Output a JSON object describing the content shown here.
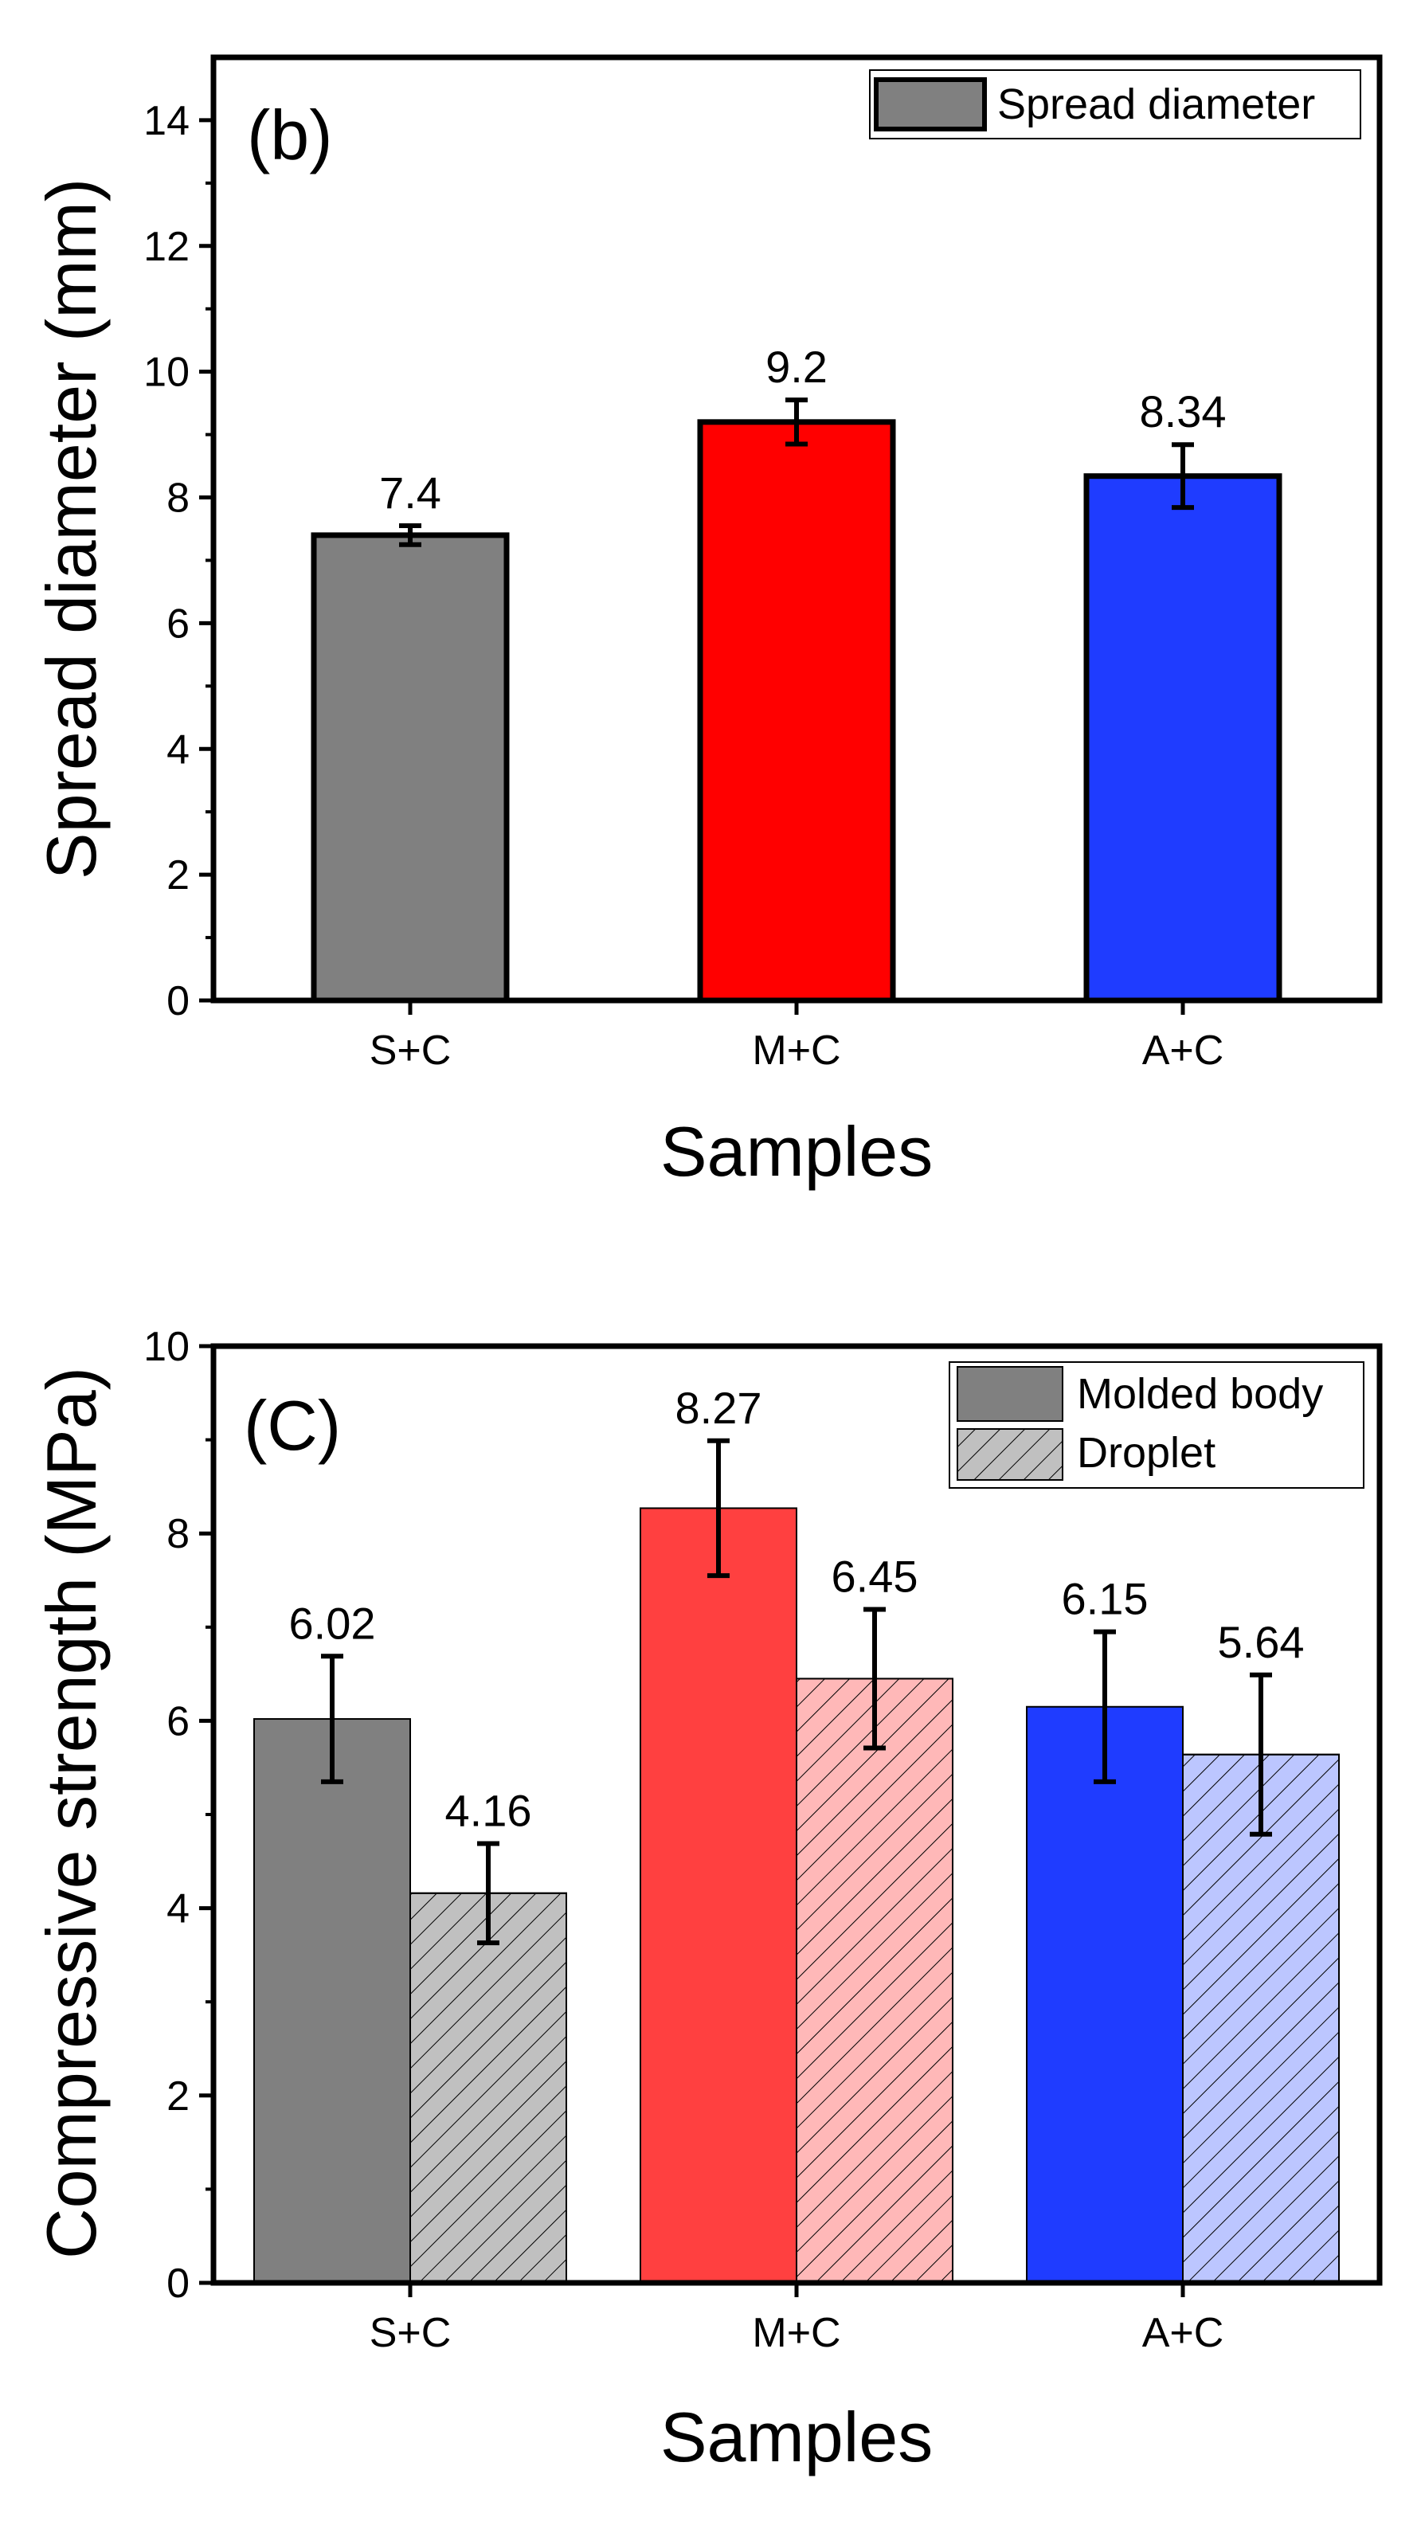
{
  "chart_data": [
    {
      "type": "bar",
      "panel_label": "(b)",
      "categories": [
        "S+C",
        "M+C",
        "A+C"
      ],
      "values": [
        7.4,
        9.2,
        8.34
      ],
      "errors": [
        0.15,
        0.35,
        0.5
      ],
      "value_labels": [
        "7.4",
        "9.2",
        "8.34"
      ],
      "bar_colors": [
        "#808080",
        "#ff0000",
        "#1f3cff"
      ],
      "legend": [
        "Spread diameter"
      ],
      "legend_position": "top-right",
      "legend_color": "#808080",
      "xlabel": "Samples",
      "ylabel": "Spread diameter (mm)",
      "ylim": [
        0,
        15
      ],
      "yticks": [
        0,
        2,
        4,
        6,
        8,
        10,
        12,
        14
      ],
      "ytick_labels": [
        "0",
        "2",
        "4",
        "6",
        "8",
        "10",
        "12",
        "14"
      ],
      "grid": false
    },
    {
      "type": "bar",
      "panel_label": "(C)",
      "categories": [
        "S+C",
        "M+C",
        "A+C"
      ],
      "series": [
        {
          "name": "Molded body",
          "values": [
            6.02,
            8.27,
            6.15
          ],
          "errors": [
            0.67,
            0.72,
            0.8
          ],
          "value_labels": [
            "6.02",
            "8.27",
            "6.15"
          ],
          "colors": [
            "#808080",
            "#ff4040",
            "#1f3cff"
          ],
          "pattern": "solid"
        },
        {
          "name": "Droplet",
          "values": [
            4.16,
            6.45,
            5.64
          ],
          "errors": [
            0.53,
            0.74,
            0.85
          ],
          "value_labels": [
            "4.16",
            "6.45",
            "5.64"
          ],
          "colors": [
            "#c0c0c0",
            "#ffb8b8",
            "#bcc6ff"
          ],
          "pattern": "hatched"
        }
      ],
      "legend_position": "top-right",
      "xlabel": "Samples",
      "ylabel": "Compressive strength (MPa)",
      "ylim": [
        0,
        10
      ],
      "yticks": [
        0,
        2,
        4,
        6,
        8,
        10
      ],
      "ytick_labels": [
        "0",
        "2",
        "4",
        "6",
        "8",
        "10"
      ],
      "grid": false
    }
  ]
}
